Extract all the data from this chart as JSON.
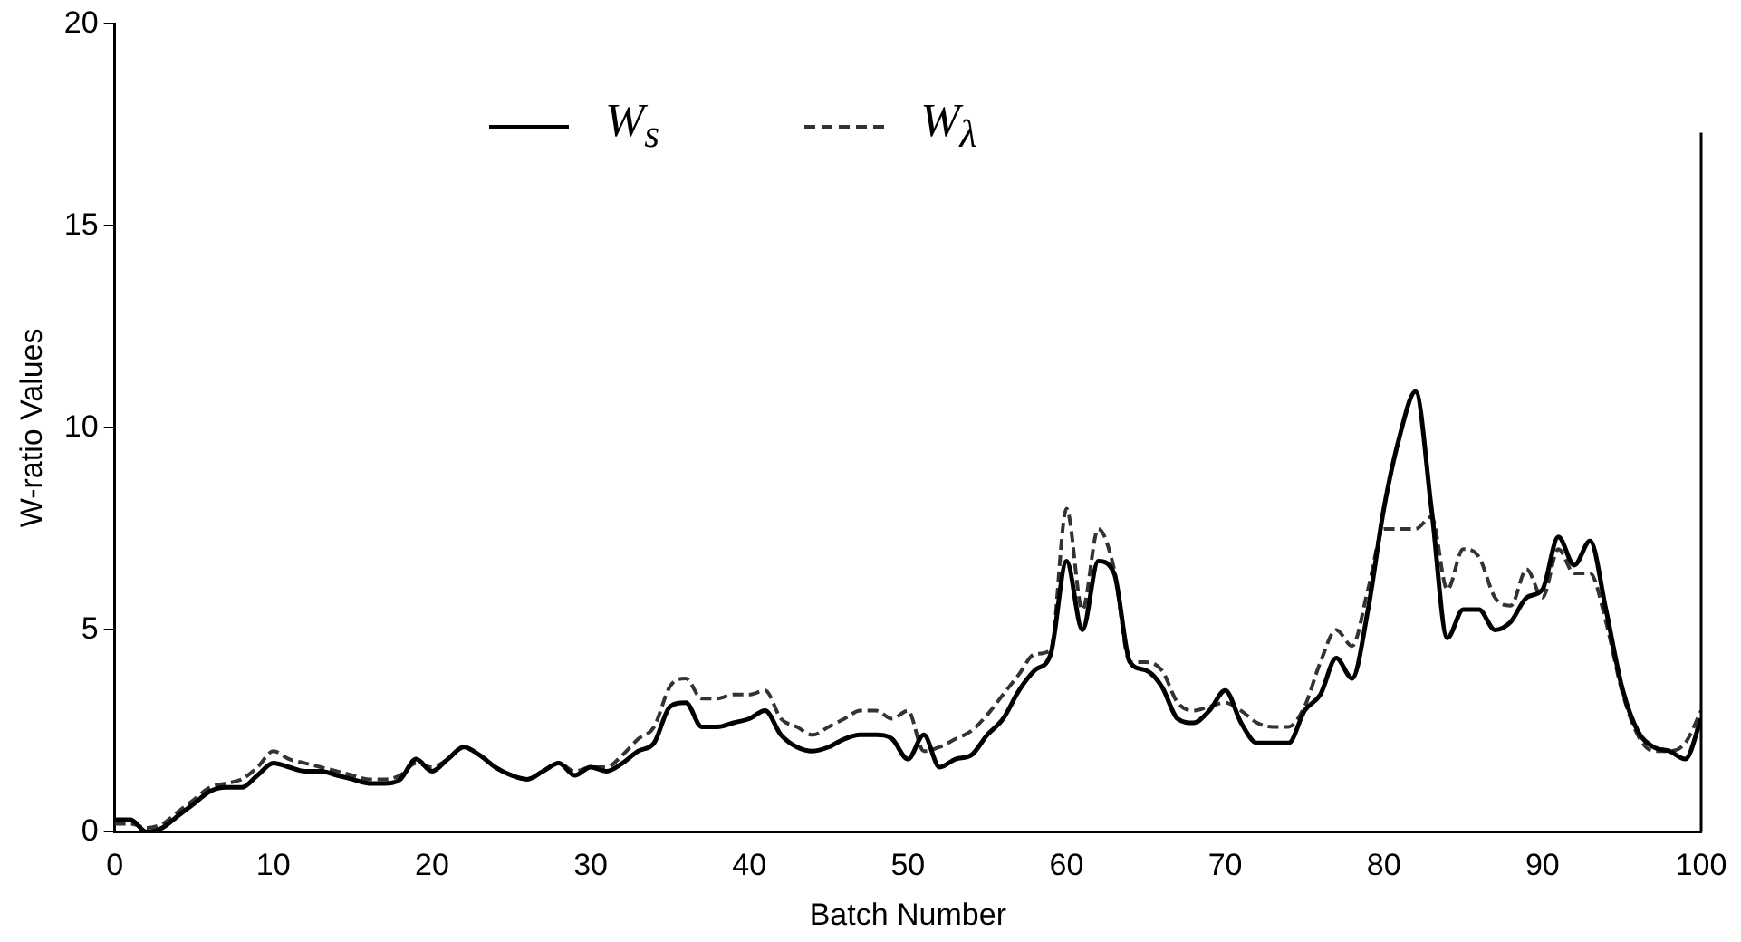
{
  "chart_data": {
    "type": "line",
    "xlabel": "Batch Number",
    "ylabel": "W-ratio Values",
    "x": [
      0,
      1,
      2,
      3,
      4,
      5,
      6,
      7,
      8,
      9,
      10,
      11,
      12,
      13,
      14,
      15,
      16,
      17,
      18,
      19,
      20,
      21,
      22,
      23,
      24,
      25,
      26,
      27,
      28,
      29,
      30,
      31,
      32,
      33,
      34,
      35,
      36,
      37,
      38,
      39,
      40,
      41,
      42,
      43,
      44,
      45,
      46,
      47,
      48,
      49,
      50,
      51,
      52,
      53,
      54,
      55,
      56,
      57,
      58,
      59,
      60,
      61,
      62,
      63,
      64,
      65,
      66,
      67,
      68,
      69,
      70,
      71,
      72,
      73,
      74,
      75,
      76,
      77,
      78,
      79,
      80,
      81,
      82,
      83,
      84,
      85,
      86,
      87,
      88,
      89,
      90,
      91,
      92,
      93,
      94,
      95,
      96,
      97,
      98,
      99,
      100
    ],
    "series": [
      {
        "name": "W$_{s}$",
        "color": "#000000",
        "line_style": "solid",
        "values": [
          0.3,
          0.3,
          0,
          0.1,
          0.4,
          0.7,
          1.0,
          1.1,
          1.1,
          1.4,
          1.7,
          1.6,
          1.5,
          1.5,
          1.4,
          1.3,
          1.2,
          1.2,
          1.3,
          1.8,
          1.5,
          1.8,
          2.1,
          1.9,
          1.6,
          1.4,
          1.3,
          1.5,
          1.7,
          1.4,
          1.6,
          1.5,
          1.7,
          2.0,
          2.2,
          3.1,
          3.2,
          2.6,
          2.6,
          2.7,
          2.8,
          3.0,
          2.4,
          2.1,
          2.0,
          2.1,
          2.3,
          2.4,
          2.4,
          2.3,
          1.8,
          2.4,
          1.6,
          1.8,
          1.9,
          2.4,
          2.8,
          3.5,
          4.0,
          4.4,
          6.7,
          5.0,
          6.7,
          6.4,
          4.2,
          4.0,
          3.6,
          2.8,
          2.7,
          3.0,
          3.5,
          2.7,
          2.2,
          2.2,
          2.2,
          3.0,
          3.4,
          4.3,
          3.8,
          5.5,
          8.0,
          9.8,
          10.9,
          8.0,
          4.8,
          5.5,
          5.5,
          5.0,
          5.2,
          5.8,
          6.0,
          7.3,
          6.6,
          7.2,
          5.5,
          3.6,
          2.5,
          2.1,
          2.0,
          1.8,
          2.8
        ]
      },
      {
        "name": "W$_{λ}$",
        "color": "#333333",
        "line_style": "dashed",
        "values": [
          0.2,
          0.2,
          0.1,
          0.2,
          0.5,
          0.8,
          1.1,
          1.2,
          1.3,
          1.6,
          2.0,
          1.8,
          1.7,
          1.6,
          1.5,
          1.4,
          1.3,
          1.3,
          1.4,
          1.7,
          1.6,
          1.8,
          2.1,
          1.9,
          1.6,
          1.4,
          1.3,
          1.5,
          1.7,
          1.5,
          1.6,
          1.6,
          1.9,
          2.3,
          2.6,
          3.6,
          3.8,
          3.3,
          3.3,
          3.4,
          3.4,
          3.5,
          2.8,
          2.6,
          2.4,
          2.6,
          2.8,
          3.0,
          3.0,
          2.8,
          3.0,
          2.0,
          2.1,
          2.3,
          2.5,
          2.9,
          3.4,
          3.9,
          4.4,
          4.5,
          8.0,
          5.5,
          7.5,
          6.5,
          4.2,
          4.2,
          4.0,
          3.2,
          3.0,
          3.1,
          3.2,
          3.0,
          2.7,
          2.6,
          2.6,
          3.1,
          4.2,
          5.0,
          4.6,
          6.0,
          7.5,
          7.5,
          7.5,
          7.8,
          6.0,
          7.0,
          6.8,
          5.8,
          5.6,
          6.5,
          5.8,
          7.0,
          6.4,
          6.4,
          5.2,
          3.5,
          2.4,
          2.0,
          2.0,
          2.2,
          3.0
        ]
      }
    ],
    "xlim": [
      0,
      100
    ],
    "xticks": [
      0,
      10,
      20,
      30,
      40,
      50,
      60,
      70,
      80,
      90,
      100
    ],
    "ylim": [
      0,
      20
    ],
    "yticks": [
      0,
      5,
      10,
      15,
      20
    ],
    "grid": false,
    "legend": "top",
    "marker": "none"
  }
}
